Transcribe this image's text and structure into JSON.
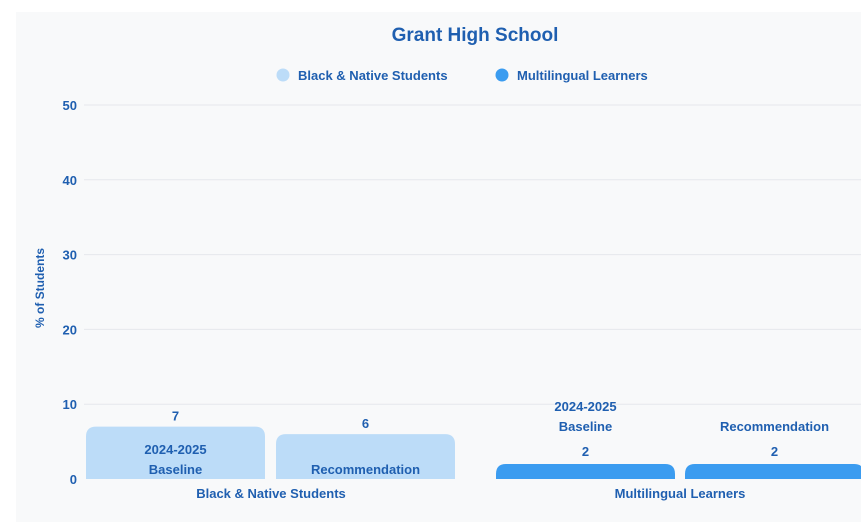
{
  "chart_data": {
    "type": "bar",
    "title": "Grant High School",
    "ylabel": "% of Students",
    "xlabel": "",
    "ylim": [
      0,
      50
    ],
    "yticks": [
      0,
      10,
      20,
      30,
      40,
      50
    ],
    "grid": true,
    "legend_position": "top",
    "legend": [
      {
        "name": "Black & Native Students",
        "color": "#bcdcf8"
      },
      {
        "name": "Multilingual Learners",
        "color": "#3b9cf0"
      }
    ],
    "groups": [
      {
        "label": "Black & Native Students",
        "color": "#bcdcf8",
        "bars": [
          {
            "label_lines": [
              "2024-2025",
              "Baseline"
            ],
            "value": 7
          },
          {
            "label_lines": [
              "Recommendation"
            ],
            "value": 6
          }
        ]
      },
      {
        "label": "Multilingual Learners",
        "color": "#3b9cf0",
        "bars": [
          {
            "label_lines": [
              "2024-2025",
              "Baseline"
            ],
            "value": 2
          },
          {
            "label_lines": [
              "Recommendation"
            ],
            "value": 2
          }
        ]
      }
    ]
  }
}
